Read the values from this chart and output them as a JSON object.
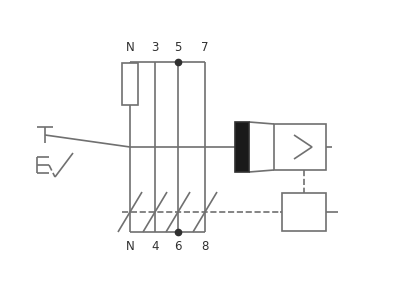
{
  "bg_color": "#ffffff",
  "line_color": "#707070",
  "dashed_color": "#707070",
  "dot_color": "#303030",
  "text_color": "#303030",
  "figsize": [
    4.0,
    3.0
  ],
  "dpi": 100,
  "top_labels": [
    [
      "N",
      0.33
    ],
    [
      "3",
      0.44
    ],
    [
      "5",
      0.54
    ],
    [
      "7",
      0.65
    ]
  ],
  "bot_labels": [
    [
      "N",
      0.33
    ],
    [
      "4",
      0.44
    ],
    [
      "6",
      0.54
    ],
    [
      "8",
      0.65
    ]
  ]
}
